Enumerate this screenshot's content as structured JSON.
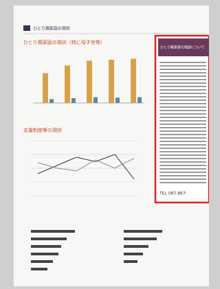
{
  "header": {
    "title": "ひとり親家庭の現状"
  },
  "section1": {
    "title": "ひとり親家庭の現状（特に母子世帯）",
    "chart": {
      "values": [
        62,
        78,
        88,
        90,
        92
      ],
      "values2": [
        8,
        10,
        12,
        11,
        12
      ],
      "ylim": [
        0,
        100
      ],
      "colors": [
        "#d9a04a",
        "#5b8a9a"
      ]
    }
  },
  "section2": {
    "title": "支援制度等の現状",
    "chart": {
      "series": [
        {
          "color": "#333333",
          "values": [
            40,
            55,
            70,
            62,
            75,
            30
          ]
        },
        {
          "color": "#888888",
          "values": [
            60,
            50,
            45,
            65,
            50,
            68
          ]
        }
      ],
      "ylim": [
        0,
        100
      ]
    }
  },
  "section3": {
    "charts": [
      {
        "values": [
          80,
          65,
          55,
          50,
          40,
          30
        ],
        "ylim": [
          0,
          100
        ]
      },
      {
        "values": [
          70,
          60,
          45,
          35,
          25
        ],
        "ylim": [
          0,
          100
        ]
      }
    ],
    "color": "#444444"
  },
  "sidebar": {
    "title": "ひとり親家庭の相談について",
    "contact": "TEL 087-867-"
  }
}
